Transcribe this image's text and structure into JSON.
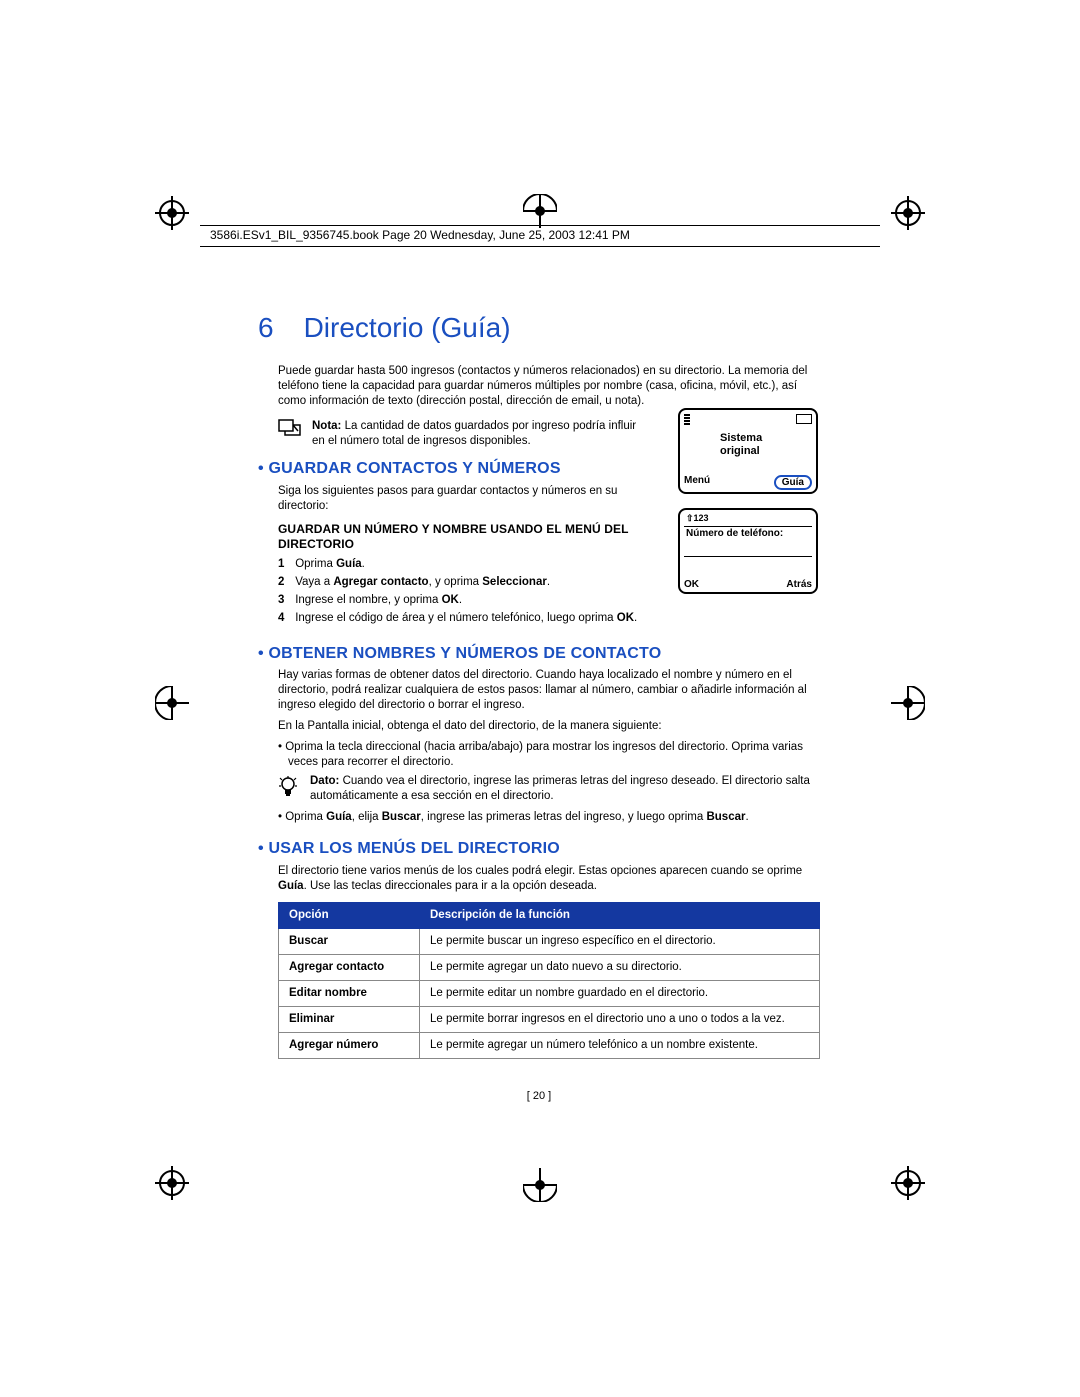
{
  "header_text": "3586i.ESv1_BIL_9356745.book  Page 20  Wednesday, June 25, 2003  12:41 PM",
  "chapter_number": "6",
  "chapter_title": "Directorio (Guía)",
  "intro": "Puede guardar hasta 500 ingresos (contactos y números relacionados) en su directorio. La memoria del teléfono tiene la capacidad para guardar números múltiples por nombre (casa, oficina, móvil, etc.), así como información de texto (dirección postal, dirección de email, u nota).",
  "note_label": "Nota:",
  "note_text": " La cantidad de datos guardados por ingreso podría influir en el número total de ingresos disponibles.",
  "h2_1": "GUARDAR CONTACTOS Y NÚMEROS",
  "h2_1_follow": "Siga los siguientes pasos para guardar contactos y números en su directorio:",
  "h3_1": "GUARDAR UN NÚMERO Y NOMBRE USANDO EL MENÚ DEL DIRECTORIO",
  "steps": [
    {
      "n": "1",
      "html": "Oprima <b>Guía</b>."
    },
    {
      "n": "2",
      "html": "Vaya a <b>Agregar contacto</b>, y oprima <b>Seleccionar</b>."
    },
    {
      "n": "3",
      "html": "Ingrese el nombre, y oprima <b>OK</b>."
    },
    {
      "n": "4",
      "html": "Ingrese el código de área y el número telefónico, luego oprima <b>OK</b>."
    }
  ],
  "h2_2": "OBTENER NOMBRES Y NÚMEROS DE CONTACTO",
  "h2_2_p1": "Hay varias formas de obtener datos del directorio. Cuando haya localizado el nombre y número en el directorio, podrá realizar cualquiera de estos pasos: llamar al número, cambiar o añadirle información al ingreso elegido del directorio o borrar el ingreso.",
  "h2_2_p2": "En la Pantalla inicial, obtenga el dato del directorio, de la manera siguiente:",
  "h2_2_b1": "Oprima la tecla direccional (hacia arriba/abajo) para mostrar los ingresos del directorio. Oprima varias veces para recorrer el directorio.",
  "tip_label": "Dato:",
  "tip_text": " Cuando vea el directorio, ingrese las primeras letras del ingreso deseado. El directorio salta automáticamente a esa sección en el directorio.",
  "h2_2_b2_html": "Oprima <b>Guía</b>, elija <b>Buscar</b>, ingrese las primeras letras del ingreso, y luego oprima <b>Buscar</b>.",
  "h2_3": "USAR LOS MENÚS DEL DIRECTORIO",
  "h2_3_p_html": "El directorio tiene varios menús de los cuales podrá elegir. Estas opciones aparecen cuando se oprime <b>Guía</b>. Use las teclas direccionales para ir a la opción deseada.",
  "table": {
    "headers": [
      "Opción",
      "Descripción de la función"
    ],
    "rows": [
      [
        "Buscar",
        "Le permite buscar un ingreso específico en el directorio."
      ],
      [
        "Agregar contacto",
        "Le permite agregar un dato nuevo a su directorio."
      ],
      [
        "Editar nombre",
        "Le permite editar un nombre guardado en el directorio."
      ],
      [
        "Eliminar",
        "Le permite borrar ingresos en el directorio uno a uno o todos a la vez."
      ],
      [
        "Agregar número",
        "Le permite agregar un número telefónico a un nombre existente."
      ]
    ]
  },
  "page_number": "20",
  "phone1": {
    "line1": "Sistema",
    "line2": "original",
    "soft_left": "Menú",
    "soft_right": "Guía"
  },
  "phone2": {
    "top_mode": "123",
    "label": "Número de teléfono:",
    "soft_left": "OK",
    "soft_right": "Atrás"
  },
  "colors": {
    "heading": "#1a4fc0",
    "table_header_bg": "#1438a0",
    "text": "#000000"
  }
}
